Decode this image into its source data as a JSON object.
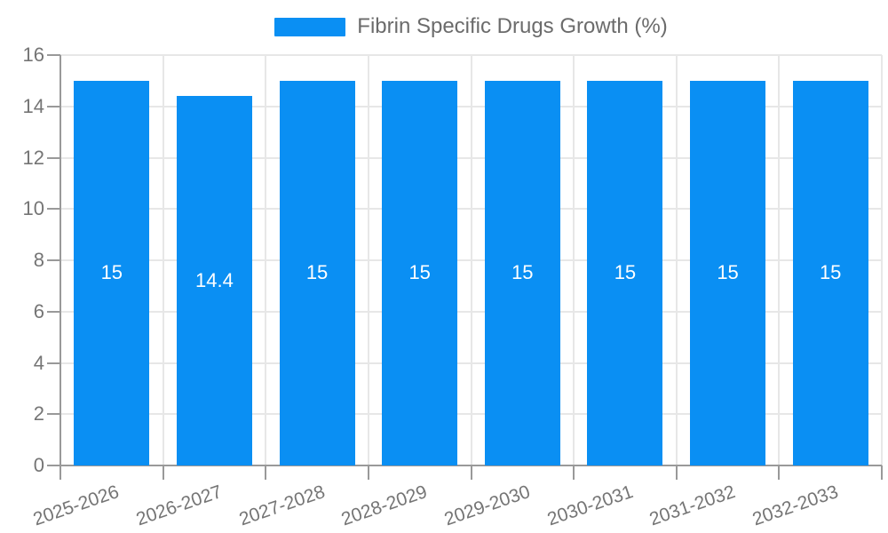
{
  "chart_data": {
    "type": "bar",
    "title": "",
    "legend": "Fibrin Specific Drugs Growth (%)",
    "legend_position": "top",
    "categories": [
      "2025-2026",
      "2026-2027",
      "2027-2028",
      "2028-2029",
      "2029-2030",
      "2030-2031",
      "2031-2032",
      "2032-2033"
    ],
    "values": [
      15,
      14.4,
      15,
      15,
      15,
      15,
      15,
      15
    ],
    "data_labels": [
      "15",
      "14.4",
      "15",
      "15",
      "15",
      "15",
      "15",
      "15"
    ],
    "xlabel": "",
    "ylabel": "",
    "ylim": [
      0,
      16
    ],
    "ytick_step": 2,
    "yticks": [
      0,
      2,
      4,
      6,
      8,
      10,
      12,
      14,
      16
    ],
    "grid": true,
    "colors": {
      "bar": "#0A8FF3",
      "data_label_text": "#ffffff",
      "axis_text": "#757575",
      "legend_text": "#6b6b6b",
      "axis_line": "#999999",
      "gridline": "#e7e7e7"
    }
  }
}
